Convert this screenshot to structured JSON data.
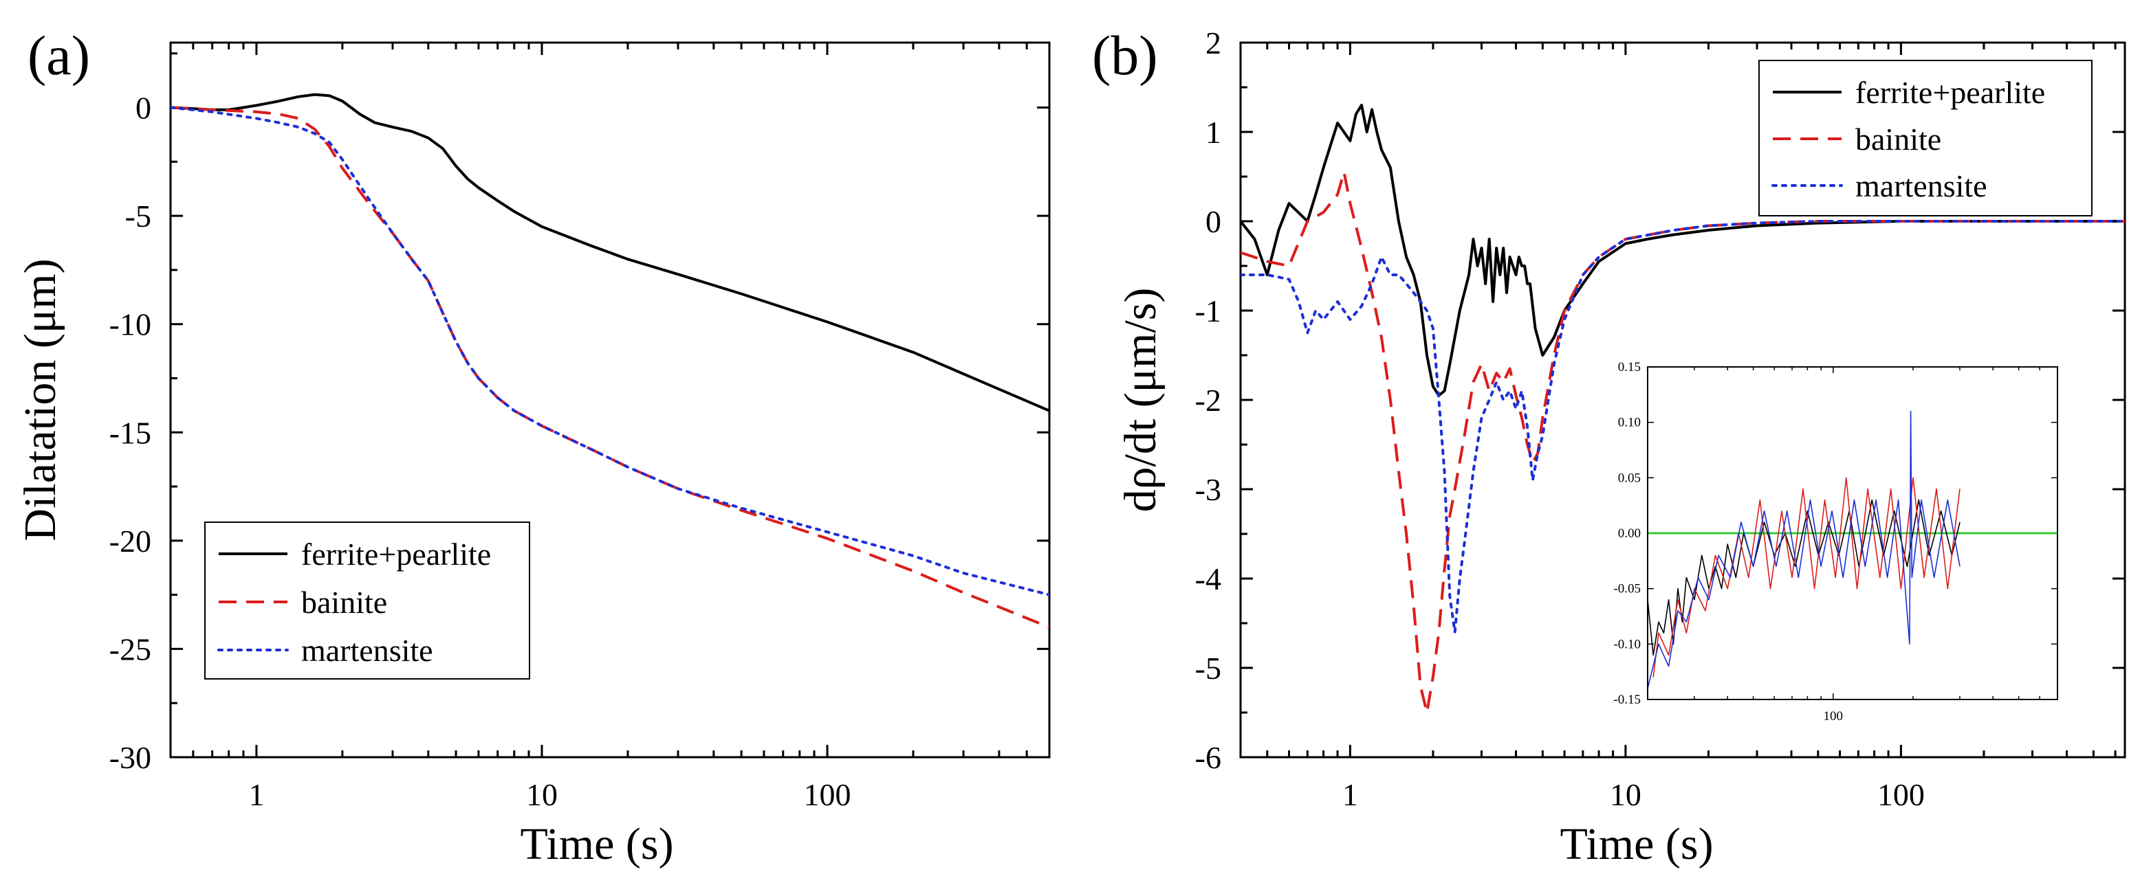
{
  "colors": {
    "ferrite_pearlite": "#000000",
    "bainite": "#dd1c1c",
    "martensite": "#1c2fd6",
    "inset_zero_line": "#33cc33"
  },
  "chart_data": [
    {
      "type": "line",
      "panel_label": "(a)",
      "xlabel": "Time (s)",
      "ylabel": "Dilatation (μm)",
      "xscale": "log",
      "xlim": [
        0.5,
        600
      ],
      "ylim": [
        -30,
        3
      ],
      "x_ticks": [
        1,
        10,
        100
      ],
      "x_tick_labels": [
        "1",
        "10",
        "100"
      ],
      "y_ticks": [
        0,
        -5,
        -10,
        -15,
        -20,
        -25,
        -30
      ],
      "y_tick_labels": [
        "0",
        "-5",
        "-10",
        "-15",
        "-20",
        "-25",
        "-30"
      ],
      "legend_position": "lower-left",
      "series": [
        {
          "name": "ferrite+pearlite",
          "style": "solid",
          "x": [
            0.5,
            0.6,
            0.7,
            0.8,
            0.9,
            1.0,
            1.2,
            1.4,
            1.6,
            1.8,
            2.0,
            2.3,
            2.6,
            3.0,
            3.5,
            4.0,
            4.5,
            5.0,
            5.5,
            6.0,
            7.0,
            8.0,
            10,
            15,
            20,
            30,
            50,
            100,
            200,
            300,
            600
          ],
          "y": [
            0,
            -0.05,
            -0.1,
            -0.1,
            0.0,
            0.1,
            0.3,
            0.5,
            0.6,
            0.55,
            0.3,
            -0.3,
            -0.7,
            -0.9,
            -1.1,
            -1.4,
            -1.9,
            -2.7,
            -3.3,
            -3.7,
            -4.3,
            -4.8,
            -5.5,
            -6.4,
            -7.0,
            -7.7,
            -8.6,
            -9.9,
            -11.3,
            -12.3,
            -14.0
          ]
        },
        {
          "name": "bainite",
          "style": "dashed",
          "x": [
            0.5,
            0.7,
            1.0,
            1.2,
            1.4,
            1.6,
            1.8,
            2.0,
            2.5,
            3.0,
            3.5,
            4.0,
            4.5,
            5.0,
            5.5,
            6.0,
            7.0,
            8.0,
            10,
            15,
            20,
            30,
            50,
            100,
            200,
            300,
            600
          ],
          "y": [
            0,
            -0.1,
            -0.2,
            -0.3,
            -0.5,
            -1.0,
            -1.8,
            -2.8,
            -4.5,
            -5.8,
            -7.0,
            -8.0,
            -9.5,
            -10.8,
            -11.8,
            -12.5,
            -13.4,
            -14.0,
            -14.7,
            -15.8,
            -16.6,
            -17.6,
            -18.6,
            -19.9,
            -21.4,
            -22.4,
            -24.0
          ]
        },
        {
          "name": "martensite",
          "style": "dotted",
          "x": [
            0.5,
            0.7,
            1.0,
            1.2,
            1.4,
            1.6,
            1.8,
            2.0,
            2.5,
            3.0,
            3.5,
            4.0,
            4.5,
            5.0,
            5.5,
            6.0,
            7.0,
            8.0,
            10,
            15,
            20,
            30,
            50,
            100,
            200,
            300,
            600
          ],
          "y": [
            0,
            -0.2,
            -0.5,
            -0.7,
            -0.9,
            -1.2,
            -1.6,
            -2.4,
            -4.3,
            -5.8,
            -7.0,
            -8.0,
            -9.5,
            -10.8,
            -11.8,
            -12.5,
            -13.4,
            -14.0,
            -14.7,
            -15.8,
            -16.6,
            -17.6,
            -18.5,
            -19.6,
            -20.7,
            -21.5,
            -22.5
          ]
        }
      ]
    },
    {
      "type": "line",
      "panel_label": "(b)",
      "xlabel": "Time (s)",
      "ylabel": "dρ/dt (μm/s)",
      "xscale": "log",
      "xlim": [
        0.4,
        650
      ],
      "ylim": [
        -6,
        2
      ],
      "x_ticks": [
        1,
        10,
        100
      ],
      "x_tick_labels": [
        "1",
        "10",
        "100"
      ],
      "y_ticks": [
        2,
        1,
        0,
        -1,
        -2,
        -3,
        -4,
        -5,
        -6
      ],
      "y_tick_labels": [
        "2",
        "1",
        "0",
        "-1",
        "-2",
        "-3",
        "-4",
        "-5",
        "-6"
      ],
      "legend_position": "top-right",
      "series": [
        {
          "name": "ferrite+pearlite",
          "style": "solid",
          "x": [
            0.4,
            0.45,
            0.5,
            0.55,
            0.6,
            0.7,
            0.75,
            0.8,
            0.9,
            1.0,
            1.05,
            1.1,
            1.15,
            1.2,
            1.25,
            1.3,
            1.4,
            1.5,
            1.6,
            1.7,
            1.8,
            1.9,
            2.0,
            2.1,
            2.2,
            2.3,
            2.5,
            2.7,
            2.8,
            2.9,
            3.0,
            3.1,
            3.2,
            3.3,
            3.4,
            3.5,
            3.6,
            3.7,
            3.8,
            3.9,
            4.0,
            4.1,
            4.2,
            4.3,
            4.4,
            4.5,
            4.7,
            5.0,
            5.5,
            6.0,
            7.0,
            8.0,
            10,
            12,
            15,
            20,
            30,
            50,
            100,
            200,
            300,
            650
          ],
          "y": [
            0,
            -0.2,
            -0.6,
            -0.1,
            0.2,
            0.0,
            0.3,
            0.6,
            1.1,
            0.9,
            1.2,
            1.3,
            1.0,
            1.25,
            1.0,
            0.8,
            0.6,
            0.0,
            -0.4,
            -0.6,
            -0.9,
            -1.5,
            -1.85,
            -1.95,
            -1.9,
            -1.6,
            -1.0,
            -0.6,
            -0.2,
            -0.5,
            -0.3,
            -0.7,
            -0.2,
            -0.9,
            -0.3,
            -0.6,
            -0.3,
            -0.8,
            -0.4,
            -0.5,
            -0.6,
            -0.4,
            -0.5,
            -0.5,
            -0.7,
            -0.7,
            -1.2,
            -1.5,
            -1.3,
            -1.0,
            -0.7,
            -0.45,
            -0.25,
            -0.2,
            -0.15,
            -0.1,
            -0.05,
            -0.02,
            0,
            0,
            0,
            0
          ]
        },
        {
          "name": "bainite",
          "style": "dashed",
          "x": [
            0.4,
            0.5,
            0.6,
            0.7,
            0.8,
            0.9,
            0.95,
            1.0,
            1.1,
            1.2,
            1.3,
            1.4,
            1.5,
            1.6,
            1.7,
            1.8,
            1.9,
            2.0,
            2.1,
            2.2,
            2.3,
            2.4,
            2.6,
            2.8,
            3.0,
            3.2,
            3.4,
            3.6,
            3.8,
            4.0,
            4.2,
            4.4,
            4.6,
            4.8,
            5.0,
            5.5,
            6.0,
            7.0,
            8.0,
            10,
            15,
            20,
            30,
            50,
            100,
            200,
            300,
            650
          ],
          "y": [
            -0.35,
            -0.45,
            -0.5,
            0.0,
            0.1,
            0.3,
            0.55,
            0.2,
            -0.3,
            -0.8,
            -1.3,
            -2.0,
            -2.8,
            -3.5,
            -4.3,
            -5.2,
            -5.5,
            -5.1,
            -4.6,
            -3.9,
            -3.3,
            -3.0,
            -2.4,
            -1.8,
            -1.6,
            -1.9,
            -1.7,
            -1.8,
            -1.65,
            -1.95,
            -2.2,
            -2.5,
            -2.7,
            -2.6,
            -2.2,
            -1.5,
            -1.0,
            -0.6,
            -0.4,
            -0.2,
            -0.1,
            -0.05,
            -0.02,
            0,
            0,
            0,
            0,
            0
          ]
        },
        {
          "name": "martensite",
          "style": "dotted",
          "x": [
            0.4,
            0.5,
            0.6,
            0.65,
            0.7,
            0.75,
            0.8,
            0.9,
            1.0,
            1.1,
            1.2,
            1.3,
            1.4,
            1.5,
            1.6,
            1.7,
            1.8,
            1.9,
            2.0,
            2.1,
            2.2,
            2.3,
            2.4,
            2.5,
            2.6,
            2.8,
            3.0,
            3.2,
            3.4,
            3.6,
            3.8,
            4.0,
            4.2,
            4.4,
            4.6,
            4.8,
            5.0,
            5.5,
            6.0,
            7.0,
            8.0,
            10,
            15,
            20,
            30,
            50,
            100,
            200,
            300,
            650
          ],
          "y": [
            -0.6,
            -0.6,
            -0.65,
            -0.9,
            -1.25,
            -1.0,
            -1.1,
            -0.9,
            -1.1,
            -0.95,
            -0.7,
            -0.4,
            -0.6,
            -0.6,
            -0.7,
            -0.8,
            -0.9,
            -1.0,
            -1.2,
            -2.0,
            -2.8,
            -4.2,
            -4.6,
            -4.0,
            -3.6,
            -2.8,
            -2.2,
            -2.0,
            -1.8,
            -2.0,
            -1.9,
            -2.1,
            -1.9,
            -2.3,
            -2.9,
            -2.6,
            -2.4,
            -1.6,
            -1.1,
            -0.6,
            -0.4,
            -0.2,
            -0.1,
            -0.05,
            -0.02,
            0,
            0,
            0,
            0,
            0
          ]
        }
      ],
      "inset": {
        "xscale": "log",
        "xlim": [
          20,
          700
        ],
        "ylim": [
          -0.15,
          0.15
        ],
        "x_ticks": [
          100
        ],
        "x_tick_labels": [
          "100"
        ],
        "y_ticks": [
          0.15,
          0.1,
          0.05,
          0.0,
          -0.05,
          -0.1,
          -0.15
        ],
        "y_tick_labels": [
          "0.15",
          "0.10",
          "0.05",
          "0.00",
          "-0.05",
          "-0.10",
          "-0.15"
        ],
        "zero_line": 0.0,
        "series": [
          {
            "name": "ferrite+pearlite",
            "x": [
              20,
              21,
              22,
              23,
              24,
              25,
              26,
              27,
              28,
              30,
              32,
              34,
              36,
              38,
              40,
              43,
              46,
              50,
              55,
              60,
              66,
              72,
              80,
              88,
              96,
              105,
              115,
              125,
              140,
              155,
              170,
              190,
              210,
              230,
              255,
              280,
              300
            ],
            "y": [
              -0.06,
              -0.11,
              -0.08,
              -0.09,
              -0.06,
              -0.1,
              -0.05,
              -0.08,
              -0.04,
              -0.06,
              -0.02,
              -0.05,
              -0.03,
              -0.05,
              -0.01,
              -0.04,
              0.0,
              -0.03,
              0.01,
              -0.02,
              0.0,
              -0.03,
              0.02,
              -0.02,
              0.01,
              -0.02,
              0.02,
              -0.03,
              0.03,
              -0.02,
              0.02,
              -0.03,
              0.03,
              -0.02,
              0.02,
              -0.02,
              0.01
            ]
          },
          {
            "name": "bainite",
            "x": [
              21,
              22,
              24,
              26,
              28,
              30,
              33,
              36,
              40,
              44,
              48,
              53,
              58,
              64,
              70,
              77,
              85,
              93,
              102,
              112,
              123,
              135,
              150,
              165,
              180,
              200,
              220,
              245,
              270,
              300
            ],
            "y": [
              -0.13,
              -0.09,
              -0.11,
              -0.06,
              -0.09,
              -0.05,
              -0.07,
              -0.02,
              -0.05,
              0.0,
              -0.04,
              0.03,
              -0.05,
              0.02,
              -0.04,
              0.04,
              -0.05,
              0.03,
              -0.04,
              0.05,
              -0.05,
              0.04,
              -0.04,
              0.04,
              -0.05,
              0.05,
              -0.04,
              0.04,
              -0.05,
              0.04
            ]
          },
          {
            "name": "martensite",
            "x": [
              20,
              22,
              24,
              26,
              28,
              31,
              34,
              37,
              41,
              45,
              50,
              55,
              61,
              67,
              74,
              82,
              90,
              99,
              109,
              120,
              132,
              145,
              160,
              176,
              194,
              196,
              198,
              215,
              240,
              270,
              300
            ],
            "y": [
              -0.14,
              -0.1,
              -0.12,
              -0.07,
              -0.08,
              -0.04,
              -0.06,
              -0.02,
              -0.04,
              0.01,
              -0.03,
              0.02,
              -0.03,
              0.02,
              -0.04,
              0.03,
              -0.03,
              0.02,
              -0.04,
              0.03,
              -0.03,
              0.03,
              -0.04,
              0.03,
              -0.1,
              0.11,
              -0.04,
              0.03,
              -0.04,
              0.03,
              -0.03
            ]
          }
        ]
      }
    }
  ]
}
